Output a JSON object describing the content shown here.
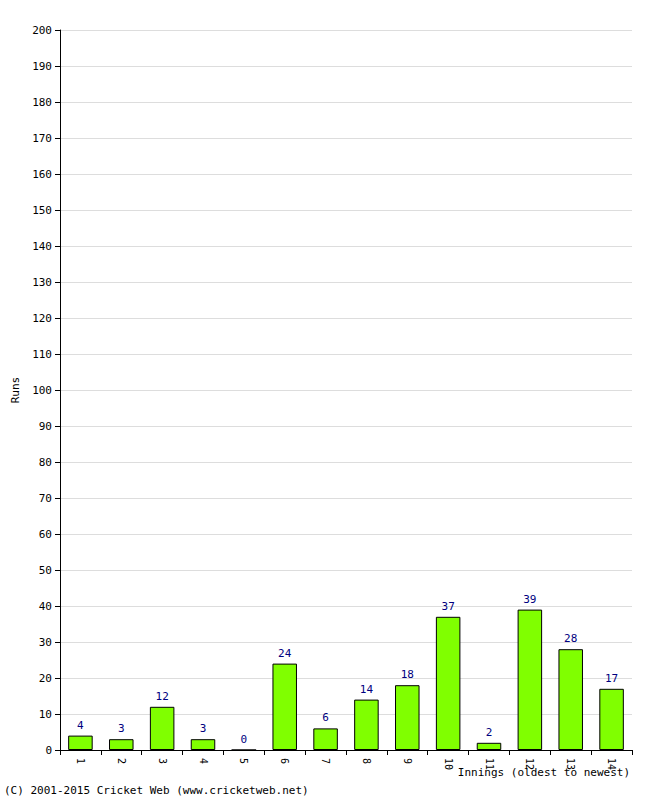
{
  "chart_data": {
    "type": "bar",
    "y_label": "Runs",
    "x_label": "Innings (oldest to newest)",
    "annotations": [
      "(C) 2001-2015 Cricket Web (www.cricketweb.net)"
    ],
    "categories": [
      "1",
      "2",
      "3",
      "4",
      "5",
      "6",
      "7",
      "8",
      "9",
      "10",
      "11",
      "12",
      "13",
      "14"
    ],
    "values": [
      4,
      3,
      12,
      3,
      0,
      24,
      6,
      14,
      18,
      37,
      2,
      39,
      28,
      17
    ],
    "color": "#80ff00",
    "ylim": [
      0,
      200
    ],
    "yticks": [
      0,
      10,
      20,
      30,
      40,
      50,
      60,
      70,
      80,
      90,
      100,
      110,
      120,
      130,
      140,
      150,
      160,
      170,
      180,
      190,
      200
    ],
    "grid": true,
    "data_labels": true
  }
}
